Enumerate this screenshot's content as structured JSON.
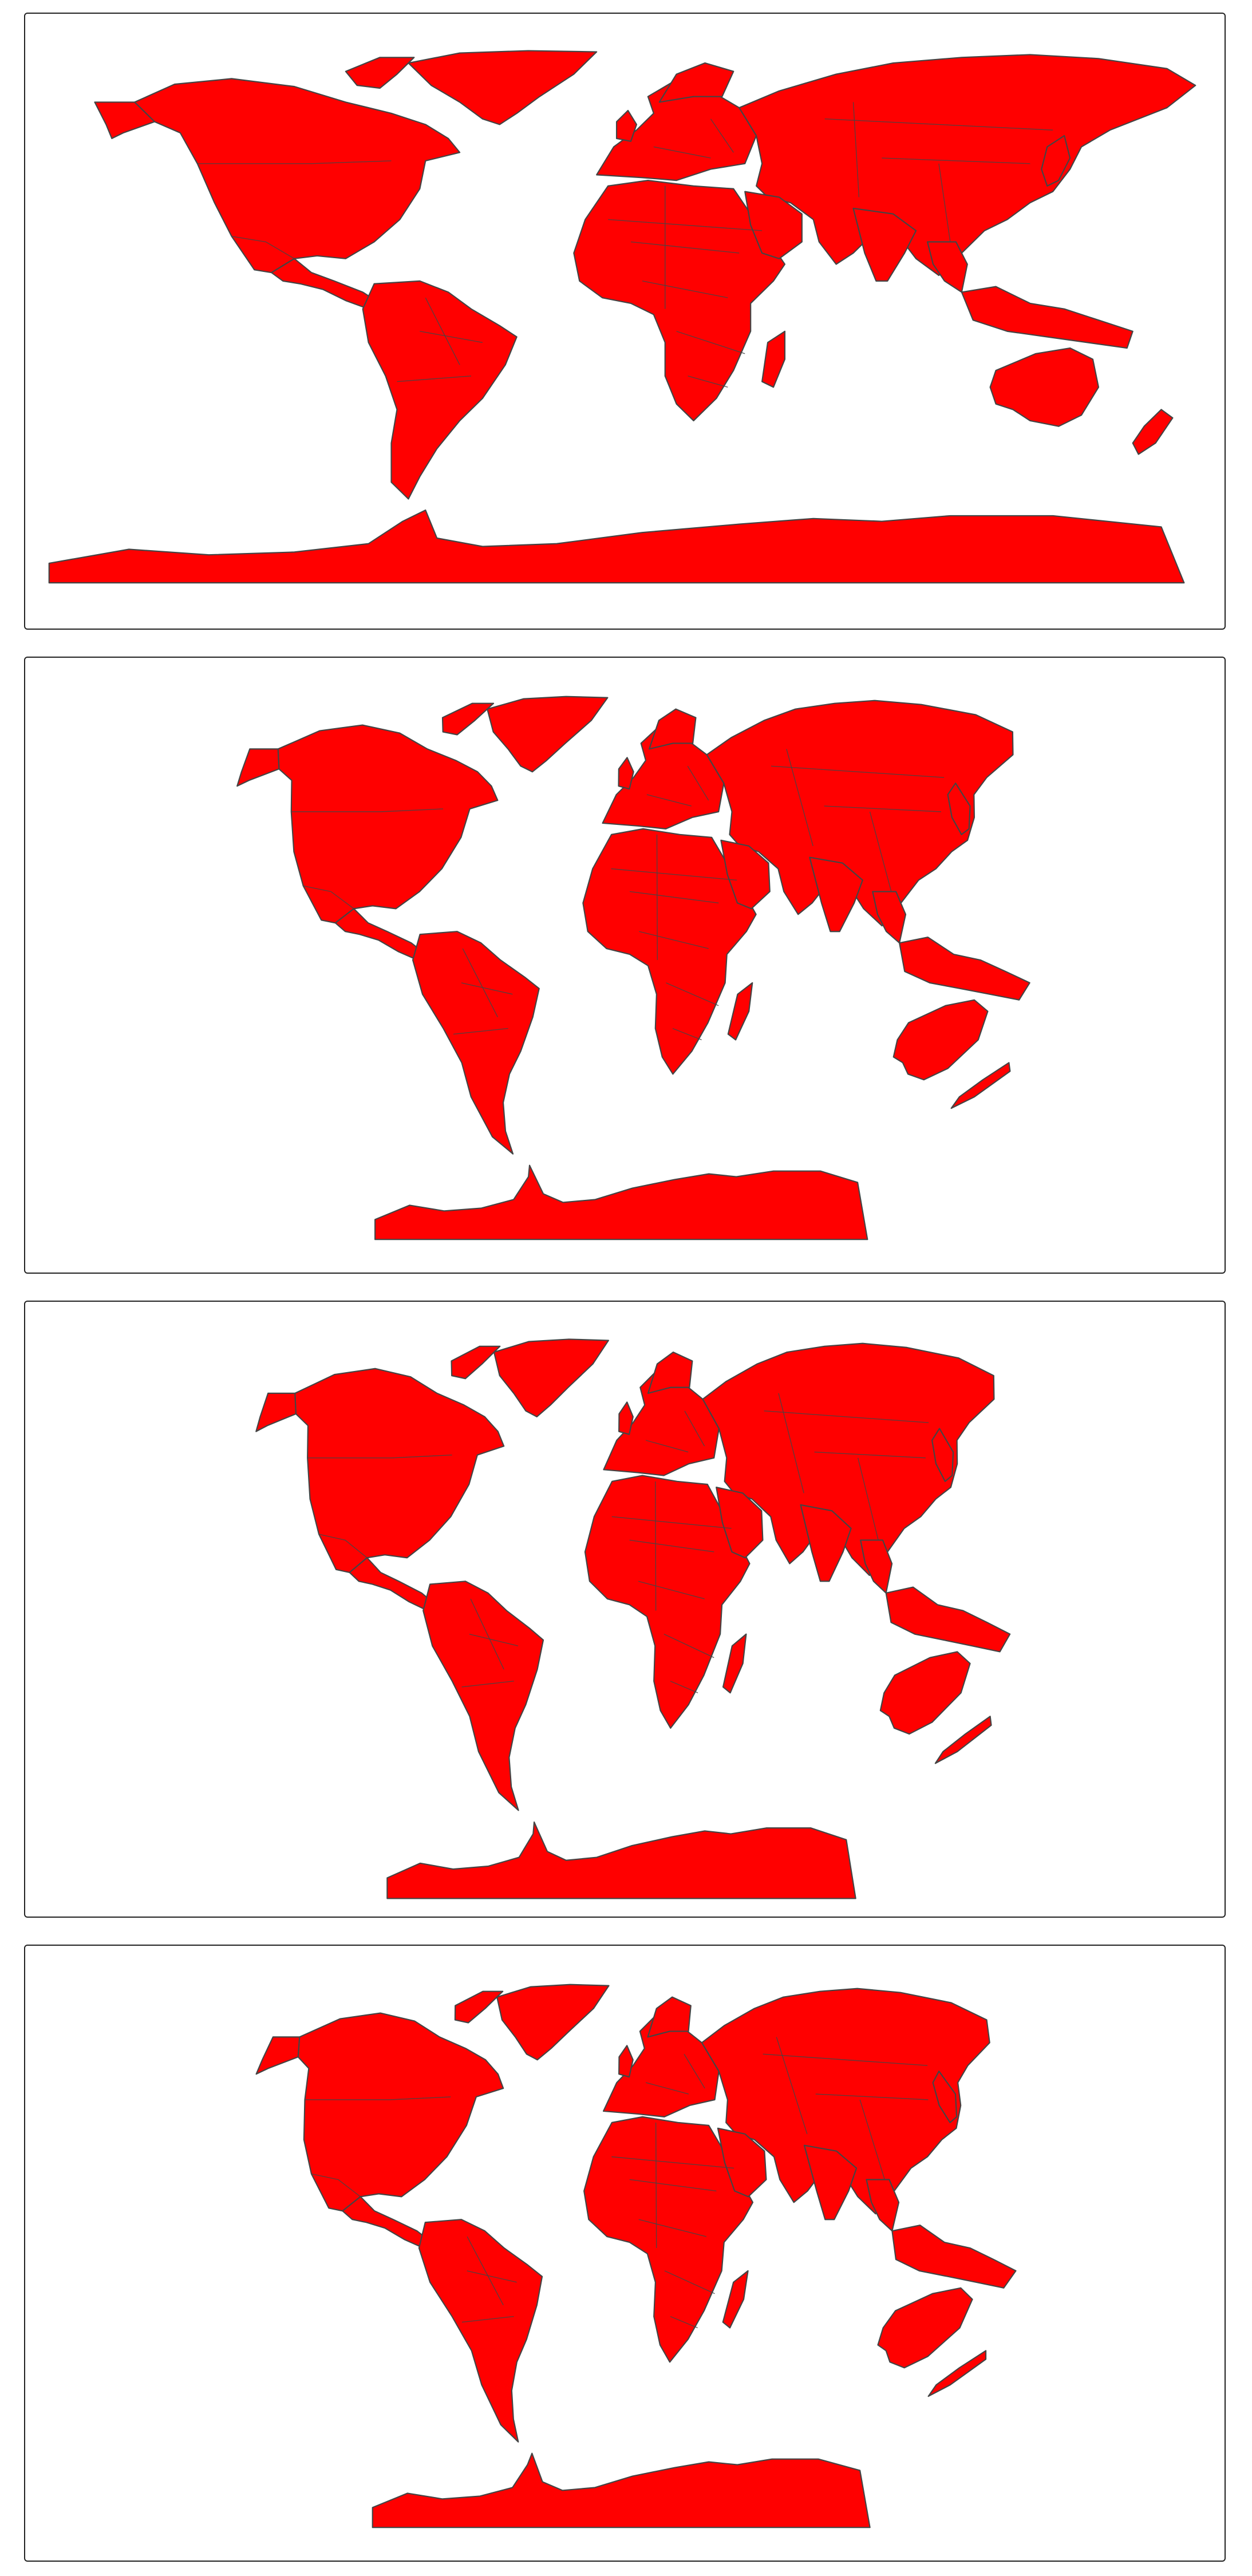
{
  "maps": [
    {
      "projection": "equirectangular"
    },
    {
      "projection": "pseudocylindrical"
    },
    {
      "projection": "pseudocylindrical-narrow"
    },
    {
      "projection": "pseudocylindrical-rounded"
    }
  ],
  "colors": {
    "land": "#ff0000",
    "outline": "#444444",
    "background": "#ffffff",
    "frame": "#222222"
  }
}
